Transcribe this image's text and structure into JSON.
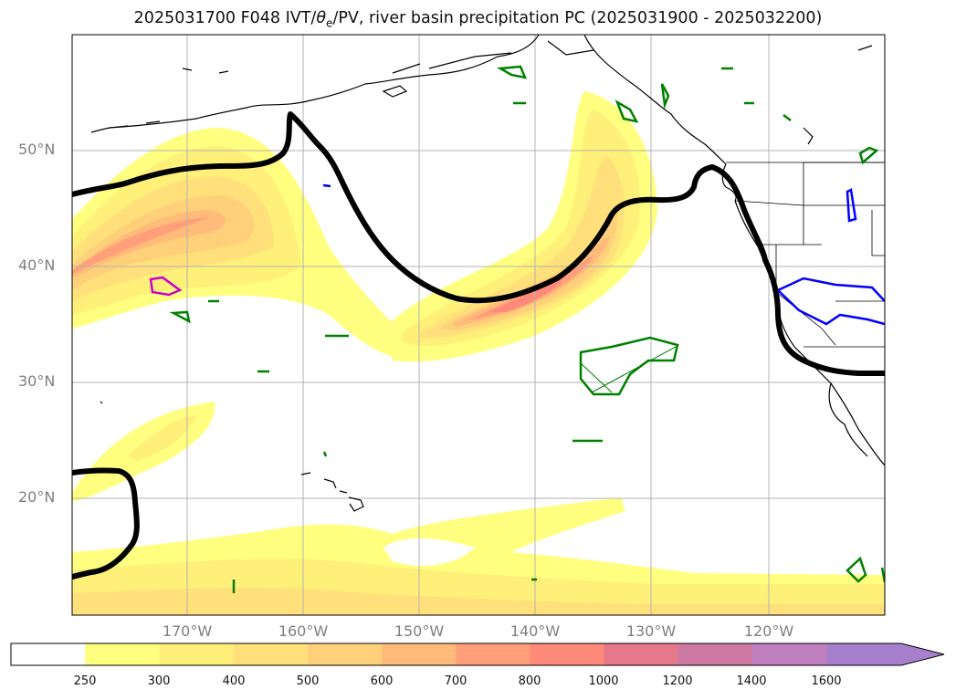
{
  "figure": {
    "title_run": "2025031700 F048 IVT/",
    "title_theta": "θ",
    "title_sub": "e",
    "title_rest": "/PV, river basin precipitation PC (2025031900 - 2025032200)"
  },
  "axes": {
    "lat_labels": [
      "50°N",
      "40°N",
      "30°N",
      "20°N"
    ],
    "lon_labels": [
      "170°W",
      "160°W",
      "150°W",
      "140°W",
      "130°W",
      "120°W"
    ]
  },
  "colorbar": {
    "ticks": [
      "250",
      "300",
      "400",
      "500",
      "600",
      "700",
      "800",
      "1000",
      "1200",
      "1400",
      "1600"
    ],
    "colors": [
      "#ffffff",
      "#ffff80",
      "#fff079",
      "#ffe07a",
      "#ffd07a",
      "#ffbb7a",
      "#ffa07a",
      "#ff8a7a",
      "#e5788a",
      "#cc7aa4",
      "#c07fbf",
      "#a680cc"
    ],
    "extend": "max"
  },
  "map": {
    "extent_lon": [
      -180,
      -110
    ],
    "extent_lat": [
      10,
      60
    ],
    "grid": true,
    "ivt_fill_colors": [
      "#ffff80",
      "#fff079",
      "#ffe07a",
      "#ffd07a",
      "#ffbb7a",
      "#ffa07a",
      "#ff8a7a"
    ],
    "pv_contour_color": "#000000",
    "precip_colors": {
      "green": "#008000",
      "blue": "#0000ff",
      "magenta": "#cc00cc"
    }
  }
}
